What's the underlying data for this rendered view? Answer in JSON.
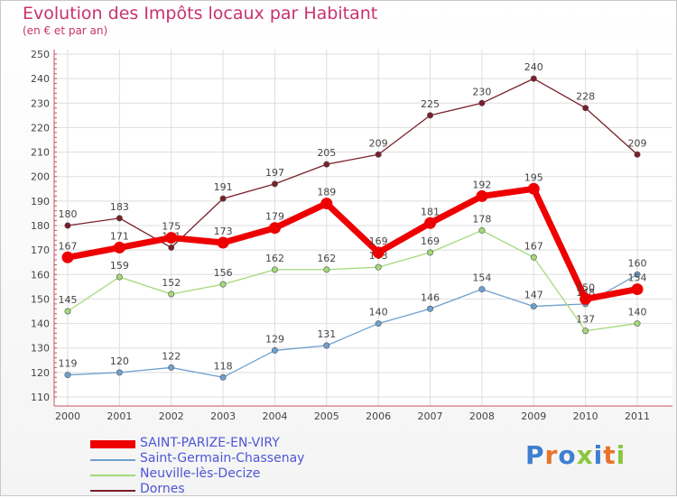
{
  "header": {
    "title": "Evolution des Impôts locaux par Habitant",
    "subtitle": "(en € et par an)"
  },
  "logo": {
    "text": "Proxiti",
    "colors": [
      "#3e7fd0",
      "#e8732a",
      "#3e7fd0",
      "#8cc63f",
      "#3e7fd0",
      "#e8732a",
      "#8cc63f"
    ]
  },
  "chart_data": {
    "type": "line",
    "title": "Evolution des Impôts locaux par Habitant",
    "subtitle": "(en € et par an)",
    "xlabel": "",
    "ylabel": "",
    "x": [
      "2000",
      "2001",
      "2002",
      "2003",
      "2004",
      "2005",
      "2006",
      "2007",
      "2008",
      "2009",
      "2010",
      "2011"
    ],
    "ylim": [
      110,
      250
    ],
    "yticks": [
      110,
      120,
      130,
      140,
      150,
      160,
      170,
      180,
      190,
      200,
      210,
      220,
      230,
      240,
      250
    ],
    "grid": true,
    "legend_position": "bottom-left",
    "series": [
      {
        "name": "SAINT-PARIZE-EN-VIRY",
        "color": "#ee0000",
        "emphasis": true,
        "values": [
          167,
          171,
          175,
          173,
          179,
          189,
          169,
          181,
          192,
          195,
          150,
          154
        ]
      },
      {
        "name": "Saint-Germain-Chassenay",
        "color": "#6fa0cf",
        "values": [
          119,
          120,
          122,
          118,
          129,
          131,
          140,
          146,
          154,
          147,
          148,
          160
        ]
      },
      {
        "name": "Neuville-lès-Decize",
        "color": "#a4d97a",
        "values": [
          145,
          159,
          152,
          156,
          162,
          162,
          163,
          169,
          178,
          167,
          137,
          140
        ]
      },
      {
        "name": "Dornes",
        "color": "#7a1f2a",
        "values": [
          180,
          183,
          171,
          191,
          197,
          205,
          209,
          225,
          230,
          240,
          228,
          209
        ]
      }
    ]
  }
}
